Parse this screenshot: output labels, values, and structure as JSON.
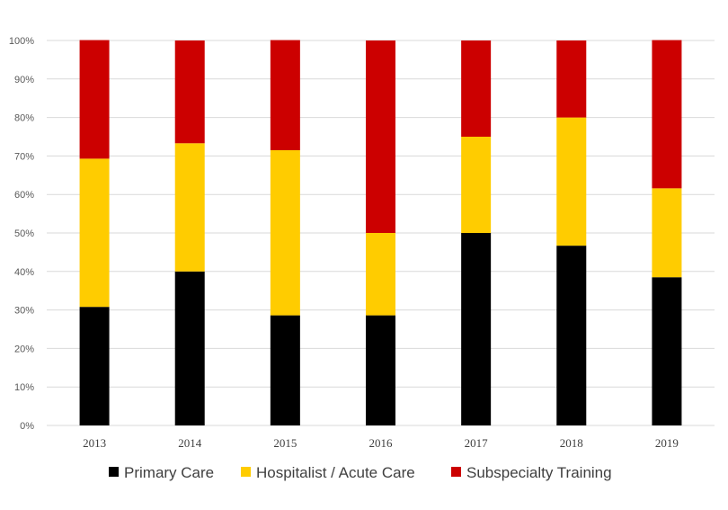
{
  "chart_data": {
    "type": "bar",
    "stacked": "percent",
    "title": "",
    "xlabel": "",
    "ylabel": "",
    "ylim": [
      0,
      100
    ],
    "yticks": [
      "0%",
      "10%",
      "20%",
      "30%",
      "40%",
      "50%",
      "60%",
      "70%",
      "80%",
      "90%",
      "100%"
    ],
    "categories": [
      "2013",
      "2014",
      "2015",
      "2016",
      "2017",
      "2018",
      "2019"
    ],
    "series": [
      {
        "name": "Primary Care",
        "color": "#000000",
        "values": [
          30.8,
          40.0,
          28.6,
          28.6,
          50.0,
          46.7,
          38.5
        ]
      },
      {
        "name": "Hospitalist / Acute Care",
        "color": "#FFCC00",
        "values": [
          38.5,
          33.3,
          42.9,
          21.4,
          25.0,
          33.3,
          23.1
        ]
      },
      {
        "name": "Subspecialty Training",
        "color": "#CC0000",
        "values": [
          30.8,
          26.7,
          28.6,
          50.0,
          25.0,
          20.0,
          38.5
        ]
      }
    ],
    "grid": true,
    "legend": "bottom"
  }
}
